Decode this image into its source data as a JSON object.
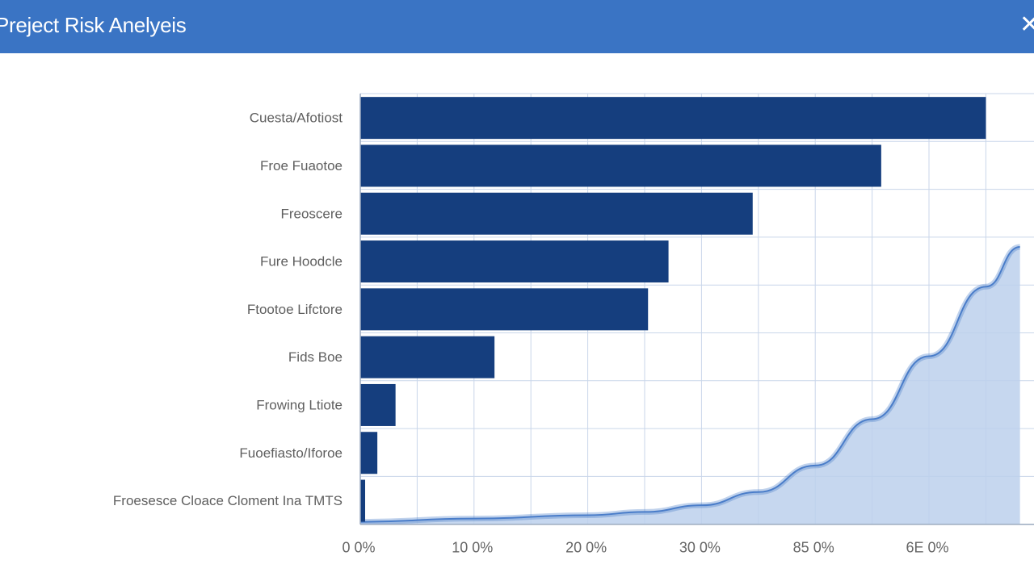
{
  "window": {
    "title": "Preject Risk Anelyeis",
    "close_glyph": "✕",
    "title_bar_color": "#3a74c4"
  },
  "chart_data": {
    "type": "bar",
    "orientation": "horizontal",
    "categories": [
      "Cuesta/Afotiost",
      "Froe Fuaotoe",
      "Freoscere",
      "Fure Hoodcle",
      "Ftootoe Lifctore",
      "Fids Boe",
      "Frowing Ltiote",
      "Fuoefiasto/Iforoe",
      "Froesesce Cloace Cloment Ina TMTS"
    ],
    "values": [
      55.0,
      45.8,
      34.5,
      27.1,
      25.3,
      11.8,
      3.1,
      1.5,
      0.4
    ],
    "bar_color": "#153e7e",
    "xlim": [
      0,
      58
    ],
    "x_ticks": [
      0,
      10,
      20,
      30,
      40,
      50
    ],
    "x_tick_labels": [
      "0 0%",
      "10 0%",
      "20 0%",
      "30 0%",
      "85 0%",
      "6E 0%"
    ],
    "grid": true,
    "curve": {
      "type": "area",
      "color": "#4a7dc9",
      "fill": "#bcd0ec",
      "points": [
        {
          "x": 0.0,
          "y": 0.0
        },
        {
          "x": 10.0,
          "y": 0.1
        },
        {
          "x": 20.0,
          "y": 0.2
        },
        {
          "x": 25.0,
          "y": 0.3
        },
        {
          "x": 30.0,
          "y": 0.5
        },
        {
          "x": 35.0,
          "y": 0.9
        },
        {
          "x": 40.0,
          "y": 1.7
        },
        {
          "x": 45.0,
          "y": 3.1
        },
        {
          "x": 50.0,
          "y": 5.0
        },
        {
          "x": 55.0,
          "y": 7.1
        },
        {
          "x": 58.0,
          "y": 8.3
        }
      ]
    }
  }
}
